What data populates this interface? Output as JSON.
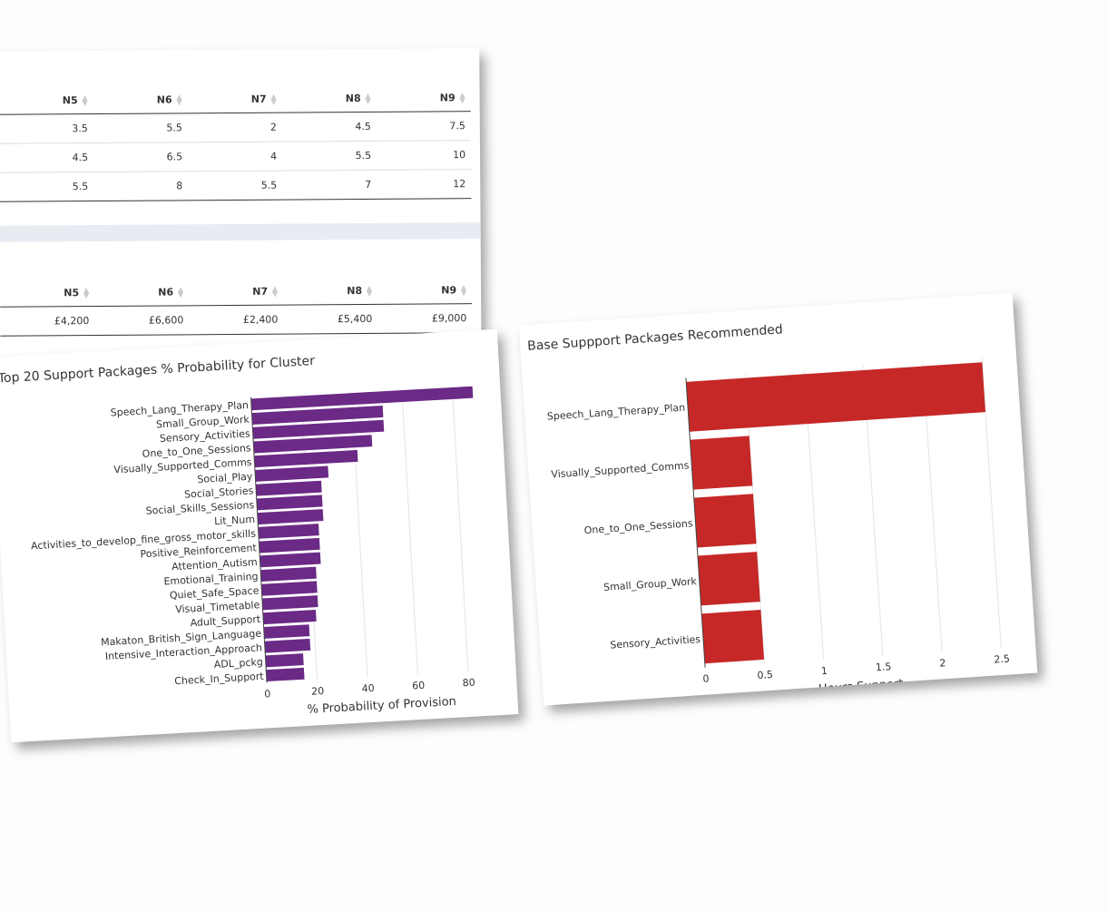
{
  "tables": [
    {
      "headers": [
        "N5",
        "N6",
        "N7",
        "N8",
        "N9"
      ],
      "rows": [
        [
          3.5,
          5.5,
          2,
          4.5,
          7.5
        ],
        [
          4.5,
          6.5,
          4,
          5.5,
          10
        ],
        [
          5.5,
          8,
          5.5,
          7,
          12
        ]
      ]
    },
    {
      "headers": [
        "N5",
        "N6",
        "N7",
        "N8",
        "N9"
      ],
      "rows": [
        [
          "£4,200",
          "£6,600",
          "£2,400",
          "£5,400",
          "£9,000"
        ]
      ]
    }
  ],
  "chart_data": [
    {
      "type": "barh",
      "title": "Top 20 Support Packages % Probability for Cluster",
      "x_label": "% Probability of Provision",
      "color": "#6a2a86",
      "categories": [
        "Speech_Lang_Therapy_Plan",
        "Small_Group_Work",
        "Sensory_Activities",
        "One_to_One_Sessions",
        "Visually_Supported_Comms",
        "Social_Play",
        "Social_Stories",
        "Social_Skills_Sessions",
        "Lit_Num",
        "Activities_to_develop_fine_gross_motor_skills",
        "Positive_Reinforcement",
        "Attention_Autism",
        "Emotional_Training",
        "Quiet_Safe_Space",
        "Visual_Timetable",
        "Adult_Support",
        "Makaton_British_Sign_Language",
        "Intensive_Interaction_Approach",
        "ADL_pckg",
        "Check_In_Support"
      ],
      "values": [
        88,
        52,
        52,
        47,
        41,
        29,
        26,
        26,
        26,
        24,
        24,
        24,
        22,
        22,
        22,
        21,
        18,
        18,
        15,
        15
      ],
      "xlim": [
        0,
        90
      ],
      "xticks": [
        0,
        20,
        40,
        60,
        80
      ],
      "grid": true
    },
    {
      "type": "barh",
      "title": "Base Suppport Packages Recommended",
      "x_label": "Hours Support",
      "color": "#c62828",
      "categories": [
        "Speech_Lang_Therapy_Plan",
        "Visually_Supported_Comms",
        "One_to_One_Sessions",
        "Small_Group_Work",
        "Sensory_Activities"
      ],
      "values": [
        2.5,
        0.5,
        0.5,
        0.5,
        0.5
      ],
      "xlim": [
        0,
        2.6
      ],
      "xticks": [
        0,
        0.5,
        1,
        1.5,
        2,
        2.5
      ],
      "grid": true
    }
  ]
}
